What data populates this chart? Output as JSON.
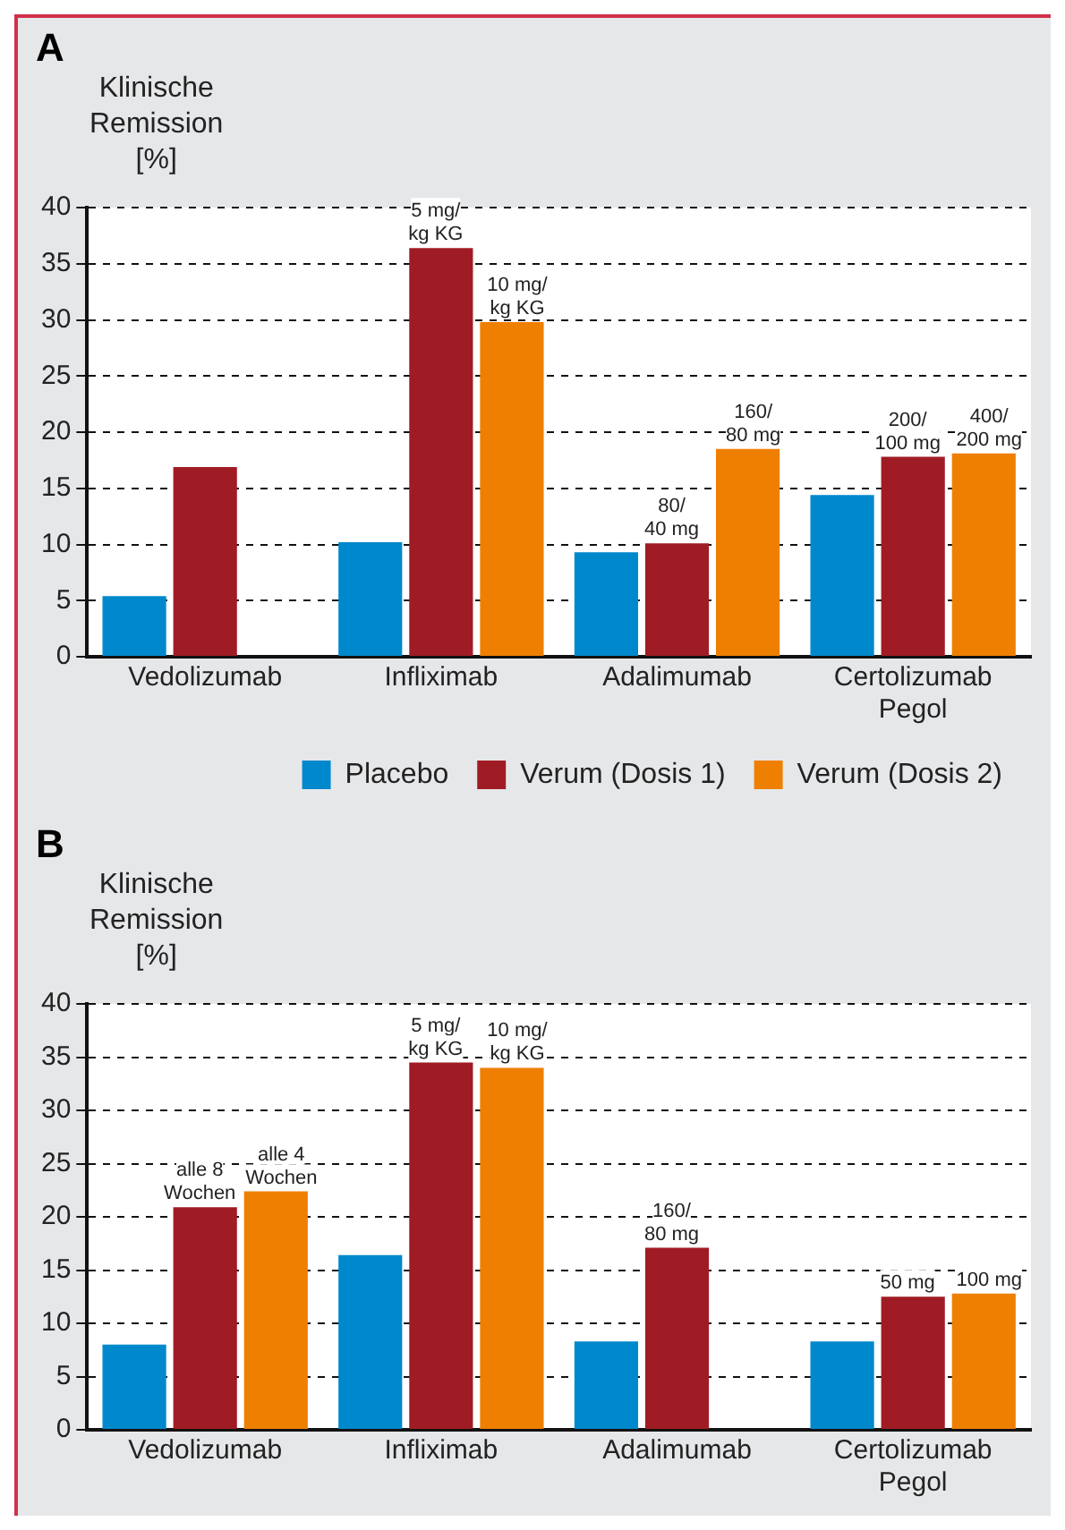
{
  "chart_data": [
    {
      "type": "bar",
      "title": "A",
      "ylabel": "Klinische Remission [%]",
      "categories": [
        "Vedolizumab",
        "Infliximab",
        "Adalimumab",
        "Certolizumab Pegol"
      ],
      "series": [
        {
          "name": "Placebo",
          "color": "#0088cc",
          "values": [
            5.4,
            10.2,
            9.3,
            14.4
          ]
        },
        {
          "name": "Verum (Dosis 1)",
          "color": "#a01c24",
          "values": [
            16.9,
            36.4,
            10.1,
            17.8
          ]
        },
        {
          "name": "Verum (Dosis 2)",
          "color": "#ee7f00",
          "values": [
            null,
            29.8,
            18.5,
            18.1
          ]
        }
      ],
      "annotations": [
        {
          "text": "5 mg/\nkg KG",
          "x": "Infliximab",
          "y": 36.4
        },
        "10 mg/\nkg KG",
        {
          "text": "80/\n40 mg",
          "x": "Adalimumab",
          "y": 10.1
        },
        "160/\n80 mg",
        {
          "text": "200/\n100 mg",
          "x": "Certolizumab Pegol",
          "y": 17.8
        },
        {
          "text": "400/\n200 mg",
          "x": "Certolizumab Pegol",
          "y": 18.1
        }
      ],
      "ylim": [
        0,
        40
      ],
      "yticks": [
        0,
        5,
        10,
        15,
        20,
        25,
        30,
        35,
        40
      ],
      "grid": "y",
      "legend": "bottom"
    },
    {
      "type": "bar",
      "title": "B",
      "ylabel": "Klinische Remission [%]",
      "categories": [
        "Vedolizumab",
        "Infliximab",
        "Adalimumab",
        "Certolizumab Pegol"
      ],
      "series": [
        {
          "color": "#0088cc",
          "values": [
            8.0,
            16.4,
            8.3,
            8.3
          ]
        },
        {
          "color": "#a01c24",
          "values": [
            20.9,
            34.5,
            17.1,
            12.5
          ]
        },
        {
          "color": "#ee7f00",
          "values": [
            22.4,
            34.0,
            null,
            12.8
          ]
        }
      ],
      "annotations": [
        {
          "text": "alle 8\nWochen",
          "x": "Vedolizumab",
          "y": 20.9
        },
        "alle 4\nWochen",
        {
          "text": "5 mg/\nkg KG",
          "x": "Infliximab",
          "y": 34.5
        },
        {
          "text": "10 mg/\nkg KG",
          "x": "Infliximab",
          "y": 34.0
        },
        {
          "text": "160/\n80 mg",
          "x": "Adalimumab",
          "y": 17.1
        },
        {
          "text": "50 mg",
          "x": "Certolizumab Pegol",
          "y": 12.5
        },
        {
          "text": "100 mg",
          "x": "Certolizumab Pegol",
          "y": 12.8
        }
      ],
      "ylim": [
        0,
        40
      ],
      "yticks": [
        0,
        5,
        10,
        15,
        20,
        25,
        30,
        35,
        40
      ],
      "grid": "y",
      "legend": false
    }
  ]
}
